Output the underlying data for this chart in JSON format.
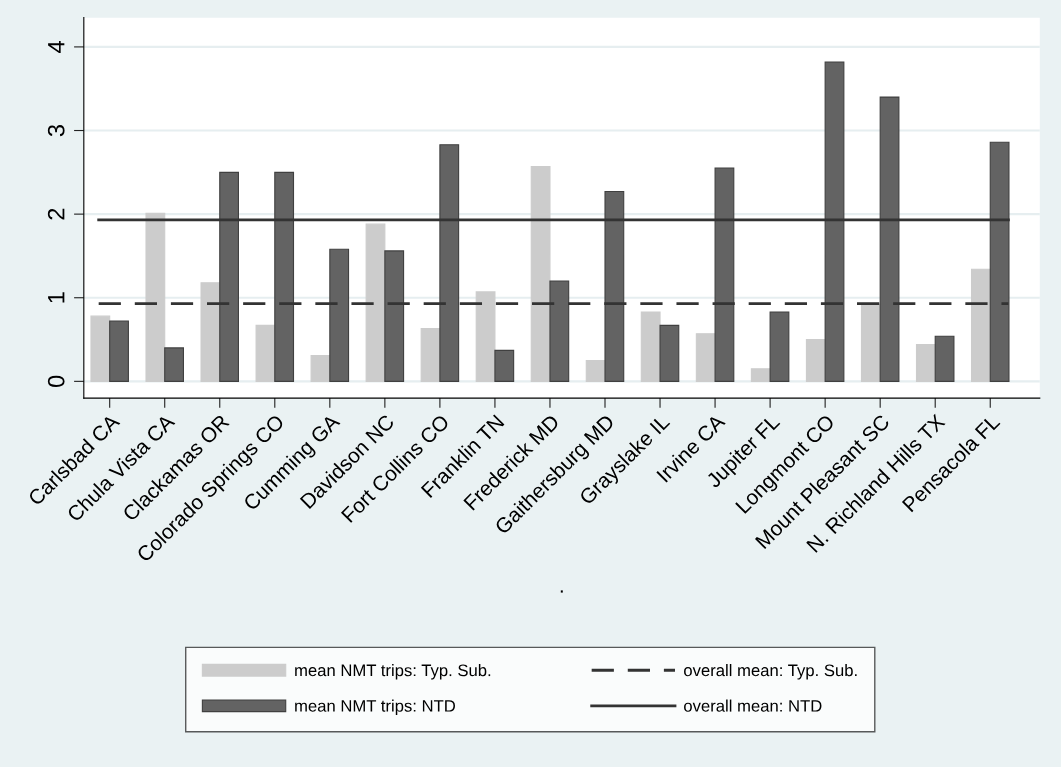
{
  "chart_data": {
    "type": "bar",
    "xlabel": ".",
    "categories": [
      "Carlsbad CA",
      "Chula Vista CA",
      "Clackamas OR",
      "Colorado Springs CO",
      "Cumming GA",
      "Davidson NC",
      "Fort Collins CO",
      "Franklin TN",
      "Frederick MD",
      "Gaithersburg MD",
      "Grayslake IL",
      "Irvine CA",
      "Jupiter FL",
      "Longmont CO",
      "Mount Pleasant SC",
      "N. Richland Hills TX",
      "Pensacola FL"
    ],
    "series": [
      {
        "name": "mean NMT trips: Typ. Sub.",
        "color": "#cccccc",
        "values": [
          0.78,
          2.01,
          1.18,
          0.67,
          0.31,
          1.88,
          0.63,
          1.07,
          2.57,
          0.25,
          0.83,
          0.57,
          0.15,
          0.5,
          0.92,
          0.44,
          1.34
        ]
      },
      {
        "name": "mean NMT trips: NTD",
        "color": "#636363",
        "values": [
          0.72,
          0.4,
          2.5,
          2.5,
          1.58,
          1.56,
          2.83,
          0.37,
          1.2,
          2.27,
          0.67,
          2.55,
          0.83,
          3.82,
          3.4,
          0.54,
          2.86
        ]
      }
    ],
    "ref_lines": [
      {
        "axis": "y",
        "value": 0.93,
        "label": "overall mean: Typ. Sub.",
        "color": "#333333",
        "line_style": "dashed"
      },
      {
        "axis": "y",
        "value": 1.93,
        "label": "overall mean: NTD",
        "color": "#333333",
        "line_style": "solid"
      }
    ],
    "ylim": [
      -0.2,
      4.35
    ],
    "yticks": [
      0,
      1,
      2,
      3,
      4
    ],
    "grid": "y",
    "legend": "bottom"
  }
}
